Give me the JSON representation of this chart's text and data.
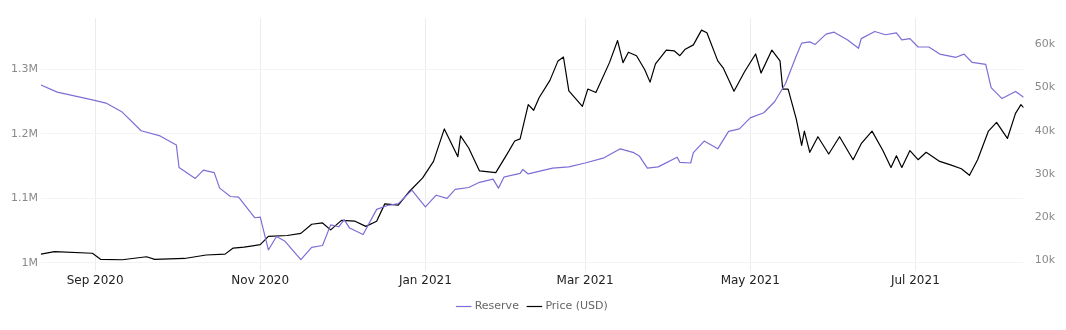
{
  "chart_data": {
    "type": "line",
    "xlim": [
      "2020-08-12",
      "2021-08-10"
    ],
    "xticks": [
      {
        "value": "2020-09-01",
        "label": "Sep 2020"
      },
      {
        "value": "2020-11-01",
        "label": "Nov 2020"
      },
      {
        "value": "2021-01-01",
        "label": "Jan 2021"
      },
      {
        "value": "2021-03-01",
        "label": "Mar 2021"
      },
      {
        "value": "2021-05-01",
        "label": "May 2021"
      },
      {
        "value": "2021-07-01",
        "label": "Jul 2021"
      }
    ],
    "ylim": [
      988000,
      1380000
    ],
    "yticks": [
      {
        "value": 1000000,
        "label": "1M"
      },
      {
        "value": 1100000,
        "label": "1.1M"
      },
      {
        "value": 1200000,
        "label": "1.2M"
      },
      {
        "value": 1300000,
        "label": "1.3M"
      }
    ],
    "y2lim": [
      7700,
      66000
    ],
    "y2ticks": [
      {
        "value": 10000,
        "label": "10k"
      },
      {
        "value": 20000,
        "label": "20k"
      },
      {
        "value": 30000,
        "label": "30k"
      },
      {
        "value": 40000,
        "label": "40k"
      },
      {
        "value": 50000,
        "label": "50k"
      },
      {
        "value": 60000,
        "label": "60k"
      }
    ],
    "grid": true,
    "legend": "bottom",
    "marker": "none",
    "line_style": "solid",
    "series": [
      {
        "name": "Reserve",
        "color": "#7b6fd6",
        "x": [
          "2020-08-12",
          "2020-08-18",
          "2020-08-31",
          "2020-09-05",
          "2020-09-11",
          "2020-09-18",
          "2020-09-25",
          "2020-10-01",
          "2020-10-02",
          "2020-10-08",
          "2020-10-11",
          "2020-10-15",
          "2020-10-17",
          "2020-10-21",
          "2020-10-24",
          "2020-10-30",
          "2020-11-01",
          "2020-11-04",
          "2020-11-07",
          "2020-11-10",
          "2020-11-16",
          "2020-11-20",
          "2020-11-24",
          "2020-11-27",
          "2020-11-30",
          "2020-12-02",
          "2020-12-04",
          "2020-12-09",
          "2020-12-14",
          "2020-12-18",
          "2020-12-22",
          "2020-12-27",
          "2021-01-01",
          "2021-01-05",
          "2021-01-09",
          "2021-01-12",
          "2021-01-17",
          "2021-01-21",
          "2021-01-26",
          "2021-01-28",
          "2021-01-30",
          "2021-02-05",
          "2021-02-06",
          "2021-02-08",
          "2021-02-17",
          "2021-02-23",
          "2021-03-01",
          "2021-03-08",
          "2021-03-14",
          "2021-03-19",
          "2021-03-21",
          "2021-03-24",
          "2021-03-28",
          "2021-04-04",
          "2021-04-05",
          "2021-04-09",
          "2021-04-10",
          "2021-04-14",
          "2021-04-19",
          "2021-04-23",
          "2021-04-27",
          "2021-05-01",
          "2021-05-06",
          "2021-05-10",
          "2021-05-12",
          "2021-05-14",
          "2021-05-18",
          "2021-05-20",
          "2021-05-23",
          "2021-05-25",
          "2021-05-29",
          "2021-06-01",
          "2021-06-06",
          "2021-06-10",
          "2021-06-11",
          "2021-06-16",
          "2021-06-20",
          "2021-06-24",
          "2021-06-26",
          "2021-06-29",
          "2021-07-02",
          "2021-07-06",
          "2021-07-10",
          "2021-07-16",
          "2021-07-19",
          "2021-07-22",
          "2021-07-27",
          "2021-07-29",
          "2021-08-02",
          "2021-08-07",
          "2021-08-10"
        ],
        "values": [
          1276000,
          1265000,
          1253000,
          1248000,
          1234000,
          1205000,
          1197000,
          1183000,
          1148000,
          1131000,
          1144000,
          1140000,
          1116000,
          1103000,
          1102000,
          1070000,
          1071000,
          1020000,
          1041000,
          1034000,
          1005000,
          1024000,
          1027000,
          1059000,
          1056000,
          1067000,
          1054000,
          1044000,
          1083000,
          1089000,
          1092000,
          1113000,
          1087000,
          1105000,
          1100000,
          1114000,
          1117000,
          1125000,
          1130000,
          1116000,
          1133000,
          1139000,
          1145000,
          1138000,
          1147000,
          1149000,
          1155000,
          1163000,
          1177000,
          1171000,
          1166000,
          1147000,
          1149000,
          1164000,
          1156000,
          1155000,
          1171000,
          1189000,
          1177000,
          1204000,
          1208000,
          1225000,
          1233000,
          1250000,
          1264000,
          1278000,
          1321000,
          1341000,
          1343000,
          1339000,
          1355000,
          1358000,
          1346000,
          1333000,
          1348000,
          1359000,
          1354000,
          1357000,
          1346000,
          1348000,
          1335000,
          1335000,
          1324000,
          1319000,
          1324000,
          1311000,
          1308000,
          1272000,
          1255000,
          1266000,
          1257000
        ]
      },
      {
        "name": "Price (USD)",
        "color": "#000000",
        "axis": "y2",
        "x": [
          "2020-08-12",
          "2020-08-17",
          "2020-08-31",
          "2020-09-03",
          "2020-09-11",
          "2020-09-20",
          "2020-09-23",
          "2020-10-04",
          "2020-10-12",
          "2020-10-19",
          "2020-10-22",
          "2020-10-26",
          "2020-11-01",
          "2020-11-04",
          "2020-11-11",
          "2020-11-16",
          "2020-11-20",
          "2020-11-24",
          "2020-11-27",
          "2020-12-01",
          "2020-12-06",
          "2020-12-10",
          "2020-12-14",
          "2020-12-17",
          "2020-12-22",
          "2020-12-26",
          "2020-12-31",
          "2021-01-04",
          "2021-01-08",
          "2021-01-13",
          "2021-01-14",
          "2021-01-17",
          "2021-01-21",
          "2021-01-27",
          "2021-01-31",
          "2021-02-03",
          "2021-02-05",
          "2021-02-08",
          "2021-02-10",
          "2021-02-12",
          "2021-02-16",
          "2021-02-19",
          "2021-02-21",
          "2021-02-23",
          "2021-02-28",
          "2021-03-02",
          "2021-03-05",
          "2021-03-10",
          "2021-03-13",
          "2021-03-15",
          "2021-03-17",
          "2021-03-20",
          "2021-03-23",
          "2021-03-25",
          "2021-03-27",
          "2021-03-31",
          "2021-04-03",
          "2021-04-05",
          "2021-04-07",
          "2021-04-10",
          "2021-04-13",
          "2021-04-15",
          "2021-04-19",
          "2021-04-21",
          "2021-04-25",
          "2021-04-29",
          "2021-05-03",
          "2021-05-05",
          "2021-05-09",
          "2021-05-12",
          "2021-05-13",
          "2021-05-15",
          "2021-05-18",
          "2021-05-20",
          "2021-05-21",
          "2021-05-23",
          "2021-05-26",
          "2021-05-30",
          "2021-06-03",
          "2021-06-08",
          "2021-06-11",
          "2021-06-15",
          "2021-06-19",
          "2021-06-22",
          "2021-06-24",
          "2021-06-26",
          "2021-06-29",
          "2021-07-02",
          "2021-07-05",
          "2021-07-10",
          "2021-07-14",
          "2021-07-18",
          "2021-07-21",
          "2021-07-24",
          "2021-07-28",
          "2021-07-31",
          "2021-08-04",
          "2021-08-07",
          "2021-08-09",
          "2021-08-10"
        ],
        "values": [
          11500,
          12100,
          11700,
          10300,
          10200,
          10900,
          10300,
          10500,
          11300,
          11500,
          12900,
          13100,
          13700,
          15600,
          15800,
          16300,
          18400,
          18700,
          17100,
          19300,
          19100,
          17900,
          19100,
          23100,
          22800,
          25900,
          29100,
          32900,
          40400,
          34000,
          38800,
          36000,
          30700,
          30300,
          34400,
          37600,
          38100,
          46000,
          44700,
          47600,
          51600,
          56100,
          57000,
          49200,
          45600,
          49600,
          48800,
          55700,
          60800,
          55700,
          58100,
          57300,
          54100,
          51200,
          55400,
          58600,
          58400,
          57300,
          58800,
          59800,
          63200,
          62600,
          56100,
          54500,
          49100,
          53700,
          57700,
          53300,
          58600,
          56100,
          49600,
          49600,
          42700,
          36600,
          39900,
          35000,
          38600,
          34600,
          38600,
          33300,
          37000,
          39900,
          35400,
          31500,
          34200,
          31500,
          35400,
          33300,
          35000,
          32900,
          32100,
          31200,
          29700,
          33300,
          39900,
          41900,
          38200,
          44000,
          46000,
          45300
        ]
      }
    ]
  }
}
